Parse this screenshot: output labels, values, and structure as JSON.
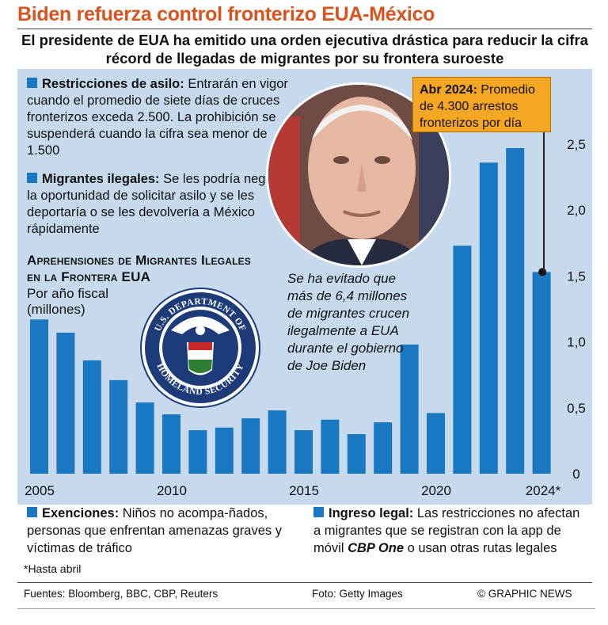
{
  "title": "Biden refuerza control fronterizo EUA-México",
  "subtitle": "El presidente de EUA ha emitido una orden ejecutiva drástica para reducir la cifra récord de llegadas de migrantes por su frontera suroeste",
  "notes": {
    "asylum_head": "Restricciones de asilo:",
    "asylum_body": " Entrarán en vigor cuando el promedio de siete días de cruces fronterizos exceda 2.500. La prohibición se suspenderá cuando la cifra sea menor de 1.500",
    "illegal_head": "Migrantes ilegales:",
    "illegal_body": " Se les podría negar la oportunidad de solicitar asilo y se les deportaría o se les devolvería a México rápidamente",
    "exemptions_head": "Exenciones:",
    "exemptions_body": " Niños no acompa-ñados, personas que enfrentan amenazas graves y víctimas de tráfico",
    "legal_head": "Ingreso legal:",
    "legal_body_1": " Las restricciones no afectan a migrantes que se registran con la app de móvil ",
    "legal_app": "CBP One",
    "legal_body_2": " o usan otras rutas legales"
  },
  "callout": {
    "head": "Abr 2024:",
    "body": " Promedio de 4.300 arrestos fronterizos por día"
  },
  "italic_callout": "Se ha evitado que más de 6,4 millones de migrantes crucen ilegalmente a EUA durante el gobierno de Joe Biden",
  "seal_text": "U.S. DEPARTMENT OF HOMELAND SECURITY",
  "footnote": "*Hasta abril",
  "footer": {
    "sources": "Fuentes: Bloomberg, BBC, CBP, Reuters",
    "photo": "Foto: Getty Images",
    "credit": "© GRAPHIC NEWS"
  },
  "colors": {
    "bar": "#1a77c2",
    "panel": "#c7d9ec",
    "title": "#d9531e",
    "callout": "#f5a623"
  },
  "chart_data": {
    "type": "bar",
    "title": "Aprehensiones de Migrantes Ilegales en la Frontera EUA",
    "subtitle": "Por año fiscal (millones)",
    "categories": [
      "2005",
      "2006",
      "2007",
      "2008",
      "2009",
      "2010",
      "2011",
      "2012",
      "2013",
      "2014",
      "2015",
      "2016",
      "2017",
      "2018",
      "2019",
      "2020",
      "2021",
      "2022",
      "2023",
      "2024*"
    ],
    "values": [
      1.17,
      1.07,
      0.86,
      0.71,
      0.54,
      0.45,
      0.33,
      0.35,
      0.42,
      0.48,
      0.33,
      0.41,
      0.3,
      0.39,
      0.98,
      0.46,
      1.73,
      2.36,
      2.47,
      1.53
    ],
    "x_tick_labels": [
      "2005",
      "2010",
      "2015",
      "2020",
      "2024*"
    ],
    "y_ticks": [
      "0",
      "0,5",
      "1,0",
      "1,5",
      "2,0",
      "2,5"
    ],
    "ylim": [
      0,
      2.65
    ],
    "highlight": "2024*"
  }
}
